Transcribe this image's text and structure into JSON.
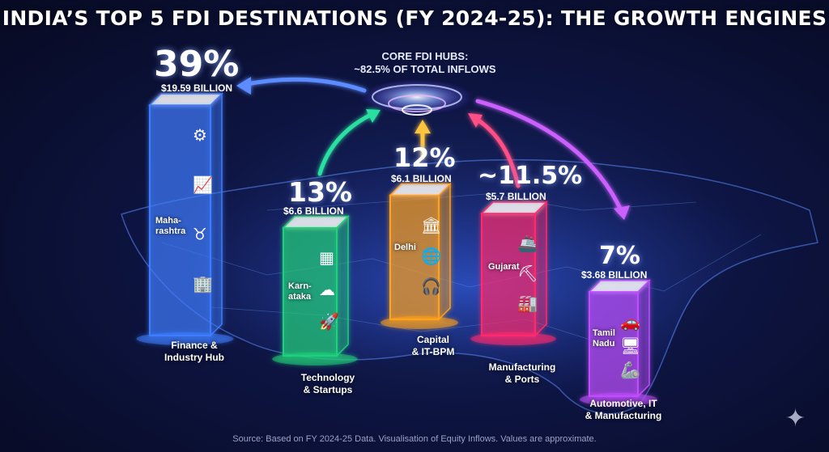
{
  "title": "INDIA’S TOP 5 FDI DESTINATIONS (FY 2024-25): THE GROWTH ENGINES",
  "hub": {
    "line1": "CORE FDI HUBS:",
    "line2": "~82.5% OF TOTAL INFLOWS"
  },
  "source": "Source: Based on FY 2024-25 Data. Visualisation of Equity Inflows. Values are approximate.",
  "chart_data": {
    "type": "bar",
    "title": "INDIA’S TOP 5 FDI DESTINATIONS (FY 2024-25): THE GROWTH ENGINES",
    "xlabel": "",
    "ylabel": "",
    "categories": [
      "Maharashtra",
      "Karnataka",
      "Delhi",
      "Gujarat",
      "Tamil Nadu"
    ],
    "bars": [
      {
        "state": "Maharashtra",
        "state_label": "Maha-\nrashtra",
        "share_pct": 39,
        "pct_label": "39%",
        "value_billion": 19.59,
        "amount_label": "$19.59 BILLION",
        "description": "Finance &\nIndustry Hub",
        "color": "#3d7dff",
        "icons": [
          "gears-icon",
          "growth-chart-icon",
          "bull-icon",
          "office-building-icon"
        ]
      },
      {
        "state": "Karnataka",
        "state_label": "Karn-\nataka",
        "share_pct": 13,
        "pct_label": "13%",
        "value_billion": 6.6,
        "amount_label": "$6.6 BILLION",
        "description": "Technology\n& Startups",
        "color": "#1fd27a",
        "icons": [
          "microchip-icon",
          "cloud-upload-icon",
          "rocket-icon"
        ]
      },
      {
        "state": "Delhi",
        "state_label": "Delhi",
        "share_pct": 12,
        "pct_label": "12%",
        "value_billion": 6.1,
        "amount_label": "$6.1 BILLION",
        "description": "Capital\n& IT-BPM",
        "color": "#ffa21a",
        "icons": [
          "parliament-icon",
          "globe-icon",
          "headset-icon"
        ]
      },
      {
        "state": "Gujarat",
        "state_label": "Gujarat",
        "share_pct": 11.5,
        "pct_label": "~11.5%",
        "value_billion": 5.7,
        "amount_label": "$5.7 BILLION",
        "description": "Manufacturing\n& Ports",
        "color": "#ff2a6d",
        "icons": [
          "cargo-ship-icon",
          "crane-icon",
          "factory-icon"
        ]
      },
      {
        "state": "Tamil Nadu",
        "state_label": "Tamil\nNadu",
        "share_pct": 7,
        "pct_label": "7%",
        "value_billion": 3.68,
        "amount_label": "$3.68 BILLION",
        "description": "Automotive, IT\n& Manufacturing",
        "color": "#c24dff",
        "icons": [
          "car-icon",
          "monitor-icon",
          "robot-arm-icon"
        ]
      }
    ]
  }
}
